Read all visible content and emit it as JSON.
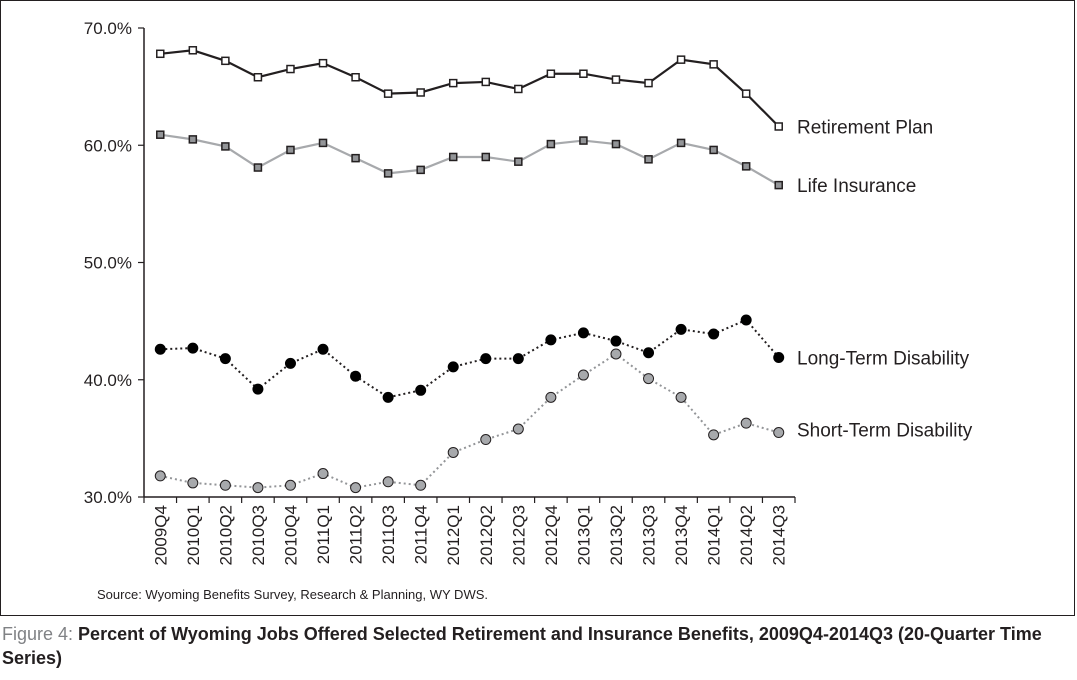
{
  "chart_data": {
    "type": "line",
    "categories": [
      "2009Q4",
      "2010Q1",
      "2010Q2",
      "2010Q3",
      "2010Q4",
      "2011Q1",
      "2011Q2",
      "2011Q3",
      "2011Q4",
      "2012Q1",
      "2012Q2",
      "2012Q3",
      "2012Q4",
      "2013Q1",
      "2013Q2",
      "2013Q3",
      "2013Q4",
      "2014Q1",
      "2014Q2",
      "2014Q3"
    ],
    "ylim": [
      30,
      70
    ],
    "yticks": [
      {
        "value": 30,
        "label": "30.0%"
      },
      {
        "value": 40,
        "label": "40.0%"
      },
      {
        "value": 50,
        "label": "50.0%"
      },
      {
        "value": 60,
        "label": "60.0%"
      },
      {
        "value": 70,
        "label": "70.0%"
      }
    ],
    "grid": false,
    "legend": "labels at right end of each series",
    "series": [
      {
        "name": "Retirement Plan",
        "marker": "square",
        "line": "solid",
        "line_color": "#231f20",
        "marker_fill": "#ffffff",
        "marker_stroke": "#231f20",
        "values": [
          67.8,
          68.1,
          67.2,
          65.8,
          66.5,
          67.0,
          65.8,
          64.4,
          64.5,
          65.3,
          65.4,
          64.8,
          66.1,
          66.1,
          65.6,
          65.3,
          67.3,
          66.9,
          64.4,
          61.6
        ]
      },
      {
        "name": "Life Insurance",
        "marker": "square",
        "line": "solid",
        "line_color": "#a7a9ac",
        "marker_fill": "#939598",
        "marker_stroke": "#231f20",
        "values": [
          60.9,
          60.5,
          59.9,
          58.1,
          59.6,
          60.2,
          58.9,
          57.6,
          57.9,
          59.0,
          59.0,
          58.6,
          60.1,
          60.4,
          60.1,
          58.8,
          60.2,
          59.6,
          58.2,
          56.6
        ]
      },
      {
        "name": "Long-Term Disability",
        "marker": "circle",
        "line": "dotted",
        "line_color": "#231f20",
        "marker_fill": "#000000",
        "marker_stroke": "#000000",
        "values": [
          42.6,
          42.7,
          41.8,
          39.2,
          41.4,
          42.6,
          40.3,
          38.5,
          39.1,
          41.1,
          41.8,
          41.8,
          43.4,
          44.0,
          43.3,
          42.3,
          44.3,
          43.9,
          45.1,
          41.9
        ]
      },
      {
        "name": "Short-Term Disability",
        "marker": "circle",
        "line": "dotted",
        "line_color": "#939598",
        "marker_fill": "#a7a9ac",
        "marker_stroke": "#231f20",
        "values": [
          31.8,
          31.2,
          31.0,
          30.8,
          31.0,
          32.0,
          30.8,
          31.3,
          31.0,
          33.8,
          34.9,
          35.8,
          38.5,
          40.4,
          42.2,
          40.1,
          38.5,
          35.3,
          36.3,
          35.5
        ]
      }
    ],
    "source": "Source: Wyoming Benefits Survey, Research & Planning, WY DWS."
  },
  "caption": {
    "prefix": "Figure 4: ",
    "title": "Percent of Wyoming Jobs Offered Selected Retirement and Insurance Benefits, 2009Q4-2014Q3 (20-Quarter Time Series)"
  }
}
